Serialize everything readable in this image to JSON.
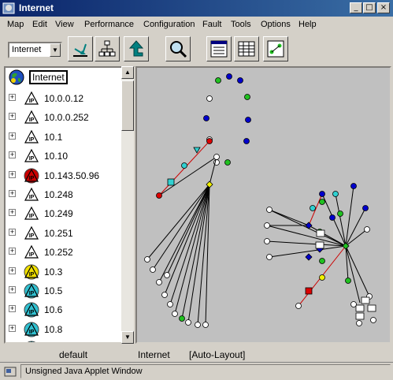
{
  "window": {
    "title": "Internet",
    "minimize": "_",
    "maximize": "□",
    "close": "×"
  },
  "menubar": {
    "items": [
      "Map",
      "Edit",
      "View",
      "Performance",
      "Configuration",
      "Fault",
      "Tools",
      "Options",
      "Help"
    ]
  },
  "toolbar": {
    "map_selector": {
      "value": "Internet"
    },
    "buttons": [
      "edit-map-icon",
      "hierarchy-icon",
      "go-up-icon",
      "search-icon",
      "map-properties-icon",
      "list-view-icon",
      "layout-icon"
    ]
  },
  "tree": {
    "root": {
      "label": "Internet",
      "icon": "globe-icon"
    },
    "items": [
      {
        "label": "10.0.0.12",
        "icon": "ip-network-icon",
        "status": "normal"
      },
      {
        "label": "10.0.0.252",
        "icon": "ip-network-icon",
        "status": "normal"
      },
      {
        "label": "10.1",
        "icon": "ip-network-icon",
        "status": "normal"
      },
      {
        "label": "10.10",
        "icon": "ip-network-icon",
        "status": "normal"
      },
      {
        "label": "10.143.50.96",
        "icon": "ip-network-icon",
        "status": "critical"
      },
      {
        "label": "10.248",
        "icon": "ip-network-icon",
        "status": "normal"
      },
      {
        "label": "10.249",
        "icon": "ip-network-icon",
        "status": "normal"
      },
      {
        "label": "10.251",
        "icon": "ip-network-icon",
        "status": "normal"
      },
      {
        "label": "10.252",
        "icon": "ip-network-icon",
        "status": "normal"
      },
      {
        "label": "10.3",
        "icon": "ip-network-icon",
        "status": "warning"
      },
      {
        "label": "10.5",
        "icon": "ip-network-icon",
        "status": "clear"
      },
      {
        "label": "10.6",
        "icon": "ip-network-icon",
        "status": "clear"
      },
      {
        "label": "10.8",
        "icon": "ip-network-icon",
        "status": "clear"
      },
      {
        "label": "",
        "icon": "ip-network-icon",
        "status": "clear"
      }
    ]
  },
  "status": {
    "view": "default",
    "map": "Internet",
    "layout": "[Auto-Layout]"
  },
  "applet": {
    "text": "Unsigned Java Applet Window"
  },
  "colors": {
    "critical": "#cc0000",
    "warning": "#f0e000",
    "clear": "#30c0d0",
    "normal": "#ffffff",
    "node_blue": "#0000cc",
    "node_green": "#20c020",
    "node_cyan": "#30d0d0",
    "node_red": "#dd0000",
    "node_yellow": "#f0f000",
    "title_gradient_start": "#0a246a"
  }
}
